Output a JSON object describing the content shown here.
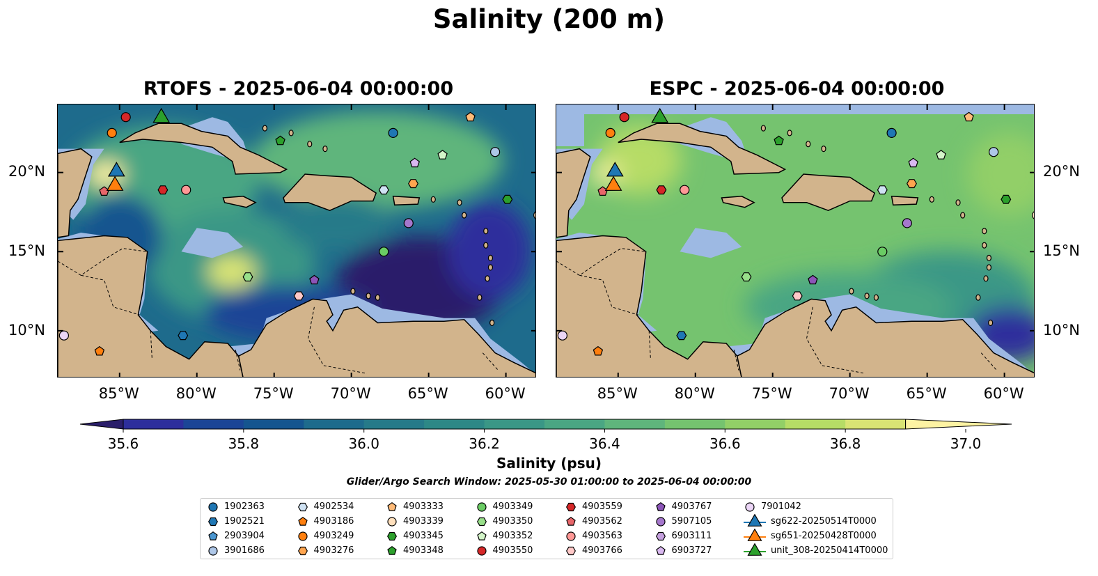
{
  "title": "Salinity (200 m)",
  "panels": [
    {
      "title": "RTOFS - 2025-06-04 00:00:00"
    },
    {
      "title": "ESPC - 2025-06-04 00:00:00"
    }
  ],
  "map_extent": {
    "lon": [
      -89,
      -58
    ],
    "lat": [
      7,
      24.3
    ]
  },
  "lat_ticks": [
    {
      "value": 20,
      "label": "20°N"
    },
    {
      "value": 15,
      "label": "15°N"
    },
    {
      "value": 10,
      "label": "10°N"
    }
  ],
  "lon_ticks": [
    {
      "value": -85,
      "label": "85°W"
    },
    {
      "value": -80,
      "label": "80°W"
    },
    {
      "value": -75,
      "label": "75°W"
    },
    {
      "value": -70,
      "label": "70°W"
    },
    {
      "value": -65,
      "label": "65°W"
    },
    {
      "value": -60,
      "label": "60°W"
    }
  ],
  "colorbar": {
    "label": "Salinity (psu)",
    "min": 35.5,
    "max": 37.0,
    "tick_labels": [
      "35.6",
      "35.8",
      "36.0",
      "36.2",
      "36.4",
      "36.6",
      "36.8",
      "37.0"
    ],
    "tick_values": [
      35.6,
      35.8,
      36.0,
      36.2,
      36.4,
      36.6,
      36.8,
      37.0
    ],
    "colors": [
      "#2a1e6a",
      "#2d2e9c",
      "#1b4596",
      "#15558f",
      "#1e6b8c",
      "#267a89",
      "#2d8886",
      "#3a9786",
      "#4aa683",
      "#5fb57c",
      "#75c36f",
      "#92cf67",
      "#b6dc66",
      "#d9e474",
      "#fdf3a3"
    ]
  },
  "colors": {
    "land": "#d2b48c",
    "shelf": "#9db9e3",
    "border": "#000000"
  },
  "search_window": "Glider/Argo Search Window: 2025-05-30 01:00:00 to 2025-06-04 00:00:00",
  "legend": [
    {
      "label": "1902363",
      "shape": "circle",
      "color": "#1f77b4"
    },
    {
      "label": "1902521",
      "shape": "hexagon",
      "color": "#1f77b4"
    },
    {
      "label": "2903904",
      "shape": "pentagon",
      "color": "#4a96d0"
    },
    {
      "label": "3901686",
      "shape": "circle",
      "color": "#aec7e8"
    },
    {
      "label": "4902534",
      "shape": "hexagon",
      "color": "#cfe2f3"
    },
    {
      "label": "4903186",
      "shape": "pentagon",
      "color": "#ff7f0e"
    },
    {
      "label": "4903249",
      "shape": "circle",
      "color": "#ff7f0e"
    },
    {
      "label": "4903276",
      "shape": "hexagon",
      "color": "#ffa54f"
    },
    {
      "label": "4903333",
      "shape": "pentagon",
      "color": "#ffbb78"
    },
    {
      "label": "4903339",
      "shape": "circle",
      "color": "#ffe0bd"
    },
    {
      "label": "4903345",
      "shape": "hexagon",
      "color": "#2ca02c"
    },
    {
      "label": "4903348",
      "shape": "pentagon",
      "color": "#2ca02c"
    },
    {
      "label": "4903349",
      "shape": "circle",
      "color": "#6acc64"
    },
    {
      "label": "4903350",
      "shape": "hexagon",
      "color": "#98df8a"
    },
    {
      "label": "4903352",
      "shape": "pentagon",
      "color": "#d3f5c8"
    },
    {
      "label": "4903550",
      "shape": "circle",
      "color": "#d62728"
    },
    {
      "label": "4903559",
      "shape": "hexagon",
      "color": "#d62728"
    },
    {
      "label": "4903562",
      "shape": "pentagon",
      "color": "#e8666a"
    },
    {
      "label": "4903563",
      "shape": "circle",
      "color": "#ff9896"
    },
    {
      "label": "4903766",
      "shape": "hexagon",
      "color": "#ffc9c8"
    },
    {
      "label": "4903767",
      "shape": "pentagon",
      "color": "#8c55b8"
    },
    {
      "label": "5907105",
      "shape": "circle",
      "color": "#a577cc"
    },
    {
      "label": "6903111",
      "shape": "hexagon",
      "color": "#c5a0de"
    },
    {
      "label": "6903727",
      "shape": "pentagon",
      "color": "#d9b8f0"
    },
    {
      "label": "7901042",
      "shape": "circle",
      "color": "#ecd6f7"
    },
    {
      "label": "sg622-20250514T0000",
      "shape": "triangle",
      "color": "#1f77b4"
    },
    {
      "label": "sg651-20250428T0000",
      "shape": "triangle",
      "color": "#ff7f0e"
    },
    {
      "label": "unit_308-20250414T0000",
      "shape": "triangle",
      "color": "#2ca02c"
    }
  ],
  "markers": [
    {
      "id": "1902363",
      "lon": -67.3,
      "lat": 22.5
    },
    {
      "id": "4903249",
      "lon": -85.5,
      "lat": 22.5
    },
    {
      "id": "4903550",
      "lon": -84.6,
      "lat": 23.5
    },
    {
      "id": "4903333",
      "lon": -62.3,
      "lat": 23.5
    },
    {
      "id": "3901686",
      "lon": -60.7,
      "lat": 21.3
    },
    {
      "id": "4903348",
      "lon": -74.6,
      "lat": 22.0
    },
    {
      "id": "4903352",
      "lon": -64.1,
      "lat": 21.1
    },
    {
      "id": "6903727",
      "lon": -65.9,
      "lat": 20.6
    },
    {
      "id": "4902534",
      "lon": -67.9,
      "lat": 18.9
    },
    {
      "id": "4903276",
      "lon": -66.0,
      "lat": 19.3
    },
    {
      "id": "4903559",
      "lon": -82.2,
      "lat": 18.9
    },
    {
      "id": "4903563",
      "lon": -80.7,
      "lat": 18.9
    },
    {
      "id": "4903562",
      "lon": -86.0,
      "lat": 18.8
    },
    {
      "id": "4903345",
      "lon": -59.9,
      "lat": 18.3
    },
    {
      "id": "4903339",
      "lon": -57.9,
      "lat": 17.3
    },
    {
      "id": "5907105",
      "lon": -66.3,
      "lat": 16.8
    },
    {
      "id": "4903349",
      "lon": -67.9,
      "lat": 15.0
    },
    {
      "id": "4903350",
      "lon": -76.7,
      "lat": 13.4
    },
    {
      "id": "4903767",
      "lon": -72.4,
      "lat": 13.2
    },
    {
      "id": "4903766",
      "lon": -73.4,
      "lat": 12.2
    },
    {
      "id": "1902521",
      "lon": -80.9,
      "lat": 9.7
    },
    {
      "id": "7901042",
      "lon": -88.6,
      "lat": 9.7
    },
    {
      "id": "4903186",
      "lon": -86.3,
      "lat": 8.7
    },
    {
      "id": "sg622-20250514T0000",
      "lon": -85.2,
      "lat": 20.2
    },
    {
      "id": "sg651-20250428T0000",
      "lon": -85.3,
      "lat": 19.3
    },
    {
      "id": "unit_308-20250414T0000",
      "lon": -82.3,
      "lat": 23.6
    }
  ]
}
